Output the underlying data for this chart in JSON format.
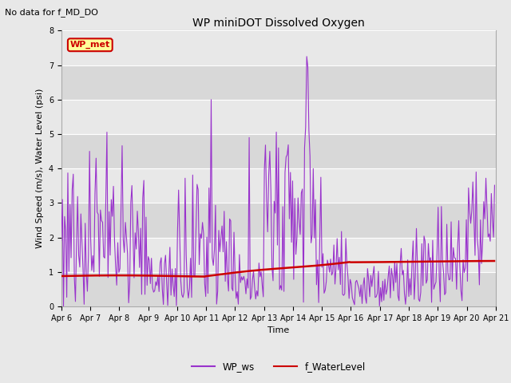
{
  "title": "WP miniDOT Dissolved Oxygen",
  "suptitle": "No data for f_MD_DO",
  "xlabel": "Time",
  "ylabel": "Wind Speed (m/s), Water Level (psi)",
  "ylim": [
    0.0,
    8.0
  ],
  "yticks": [
    0.0,
    1.0,
    2.0,
    3.0,
    4.0,
    5.0,
    6.0,
    7.0,
    8.0
  ],
  "bg_color": "#e8e8e8",
  "band_colors": [
    "#d8d8d8",
    "#e8e8e8"
  ],
  "wp_ws_color": "#9933CC",
  "f_wl_color": "#CC0000",
  "legend_label_ws": "WP_ws",
  "legend_label_wl": "f_WaterLevel",
  "inset_label": "WP_met",
  "inset_bg": "#ffff99",
  "inset_border": "#CC0000",
  "inset_text_color": "#CC0000",
  "title_fontsize": 10,
  "axis_fontsize": 8,
  "tick_fontsize": 7
}
